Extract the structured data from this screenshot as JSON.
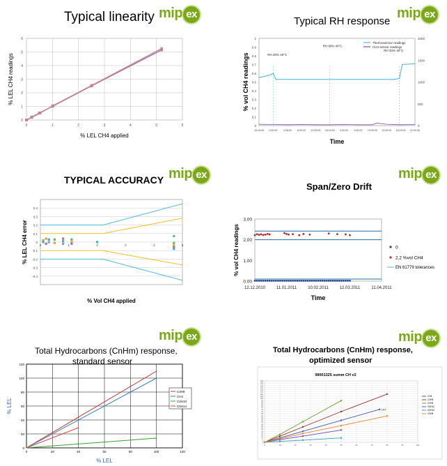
{
  "logo": {
    "text_a": "mip",
    "text_b": "ex"
  },
  "panels": [
    {
      "title": "Typical linearity"
    },
    {
      "title": "Typical RH response"
    },
    {
      "title": "TYPICAL ACCURACY"
    },
    {
      "title": "Span/Zero Drift"
    },
    {
      "title_line1": "Total Hydrocarbons (CnHm) response,",
      "title_line2": "standard sensor"
    },
    {
      "title_line1": "Total Hydrocarbons (CnHm) response,",
      "title_line2": "optimized sensor"
    }
  ],
  "chart_data": [
    {
      "type": "scatter",
      "xlabel": "% LEL CH4  applied",
      "ylabel": "% LEL CH4  readings",
      "xlim": [
        0,
        6
      ],
      "ylim": [
        0,
        6
      ],
      "xticks": [
        "0",
        "1",
        "2",
        "3",
        "4",
        "5",
        "6"
      ],
      "yticks": [
        "0",
        "1",
        "2",
        "3",
        "4",
        "5",
        "6"
      ],
      "grid": true,
      "series": [
        {
          "points": [
            [
              0,
              0
            ],
            [
              0.2,
              0.22
            ],
            [
              0.5,
              0.52
            ],
            [
              1.0,
              1.0
            ],
            [
              2.5,
              2.5
            ],
            [
              5.2,
              5.15
            ]
          ],
          "color": "#8a7fd0"
        },
        {
          "points": [
            [
              0,
              0
            ],
            [
              0.21,
              0.2
            ],
            [
              0.52,
              0.5
            ],
            [
              1.02,
              1.05
            ],
            [
              2.52,
              2.55
            ],
            [
              5.2,
              5.25
            ]
          ],
          "color": "#d08080"
        }
      ]
    },
    {
      "type": "line",
      "xlabel": "Time",
      "ylabel": "% vol CH4  readings",
      "ylim": [
        0,
        1
      ],
      "y2lim": [
        0,
        2000
      ],
      "yticks": [
        "0",
        "0.1",
        "0.2",
        "0.3",
        "0.4",
        "0.5",
        "0.6",
        "0.7",
        "0.8",
        "0.9",
        "1"
      ],
      "y2ticks": [
        "0",
        "500",
        "1000",
        "1500",
        "2000"
      ],
      "xticks": [
        "18:15:00",
        "0:00:00",
        "3:36:00",
        "8:00:00",
        "13:35:00",
        "18:15:00",
        "0:00:00",
        "5:40:00",
        "10:00:00",
        "13:30:00",
        "18:15:00",
        "22:00:00"
      ],
      "legend": [
        "Thermosensor  readings",
        "CH4  sensor  readings"
      ],
      "legend_position": "top-right",
      "annotations": [
        "RH 30% 40°C",
        "RH 90% 40°C",
        "RH 30% 40°C"
      ],
      "series": [
        {
          "name": "Thermosensor  readings",
          "color": "#4fb8e0",
          "x": [
            0,
            0.8,
            1.0,
            1.2,
            2.0,
            4.0,
            6.0,
            8.0,
            8.3,
            9.5,
            9.9,
            10.1,
            11.0
          ],
          "y": [
            0.55,
            0.58,
            0.6,
            0.53,
            0.53,
            0.53,
            0.53,
            0.53,
            0.53,
            0.53,
            0.54,
            0.7,
            0.71
          ]
        },
        {
          "name": "CH4  sensor  readings",
          "color": "#7a4fb0",
          "x": [
            0,
            1,
            2,
            3,
            4,
            5,
            6,
            7,
            8,
            8.3,
            9,
            10,
            11
          ],
          "y": [
            0.015,
            0.012,
            0.01,
            0.012,
            0.01,
            0.01,
            0.012,
            0.01,
            0.01,
            0.03,
            0.015,
            0.01,
            0.012
          ]
        }
      ]
    },
    {
      "type": "scatter",
      "xlabel": "% Vol CH4 applied",
      "ylabel": "% LEL CH4  error",
      "xlim": [
        0,
        5
      ],
      "ylim": [
        -0.5,
        0.5
      ],
      "xticks": [
        "0",
        "1",
        "2",
        "3",
        "4",
        "5"
      ],
      "yticks": [
        "0.4",
        "0.3",
        "0.2",
        "0.1",
        "0",
        "-0.1",
        "-0.2",
        "-0.3",
        "-0.4"
      ],
      "limits": [
        {
          "color": "#4fb8e0",
          "x": [
            0,
            2.2,
            5
          ],
          "y": [
            0.2,
            0.2,
            0.45
          ]
        },
        {
          "color": "#4fb8e0",
          "x": [
            0,
            2.2,
            5
          ],
          "y": [
            -0.2,
            -0.2,
            -0.45
          ]
        },
        {
          "color": "#f0c020",
          "x": [
            0,
            2.2,
            5
          ],
          "y": [
            0.1,
            0.1,
            0.28
          ]
        },
        {
          "color": "#f0c020",
          "x": [
            0,
            2.2,
            5
          ],
          "y": [
            -0.1,
            -0.1,
            -0.27
          ]
        }
      ],
      "points": [
        [
          0.1,
          0.02
        ],
        [
          0.1,
          0
        ],
        [
          0.2,
          0.04
        ],
        [
          0.2,
          -0.02
        ],
        [
          0.3,
          0.03
        ],
        [
          0.3,
          0
        ],
        [
          0.5,
          0.03
        ],
        [
          0.5,
          -0.01
        ],
        [
          0.8,
          0.04
        ],
        [
          0.8,
          0.01
        ],
        [
          0.8,
          -0.02
        ],
        [
          1.1,
          0.03
        ],
        [
          1.1,
          0
        ],
        [
          1.1,
          -0.02
        ],
        [
          2.0,
          0
        ],
        [
          4.7,
          0.07
        ],
        [
          4.7,
          -0.01
        ],
        [
          4.7,
          -0.04
        ],
        [
          4.7,
          -0.06
        ],
        [
          4.7,
          -0.08
        ]
      ]
    },
    {
      "type": "scatter",
      "xlabel": "Time",
      "ylabel": "% vol CH4  readings",
      "ylim": [
        0,
        3
      ],
      "yticks": [
        "0,00",
        "1,00",
        "2,00",
        "3,00"
      ],
      "xticks": [
        "12.12.2010",
        "11.01.2011",
        "10.02.2011",
        "12.03.2011",
        "11.04.2011"
      ],
      "legend": [
        "0",
        "2,2 %vol CH4",
        "EN 61779  tolerances"
      ],
      "legend_position": "right",
      "tolerances": [
        0.1,
        2.0,
        2.42
      ],
      "series": [
        {
          "name": "0",
          "color": "#1f3f8f",
          "x": [
            0,
            2,
            4,
            6,
            8,
            10,
            12,
            14,
            16,
            18,
            20,
            22,
            24,
            26,
            28,
            30,
            32,
            34,
            36,
            38,
            40,
            42,
            44,
            46,
            48,
            50,
            52,
            54,
            56,
            58,
            60,
            62,
            64,
            66,
            68,
            70,
            72,
            74,
            76,
            78,
            80,
            82,
            84,
            86,
            88,
            90
          ],
          "y": [
            0.02,
            0.02,
            0.02,
            0.02,
            0.02,
            0.02,
            0.02,
            0.02,
            0.02,
            0.02,
            0.02,
            0.02,
            0.02,
            0.02,
            0.02,
            0.02,
            0.02,
            0.02,
            0.02,
            0.02,
            0.02,
            0.02,
            0.02,
            0.02,
            0.02,
            0.02,
            0.02,
            0.02,
            0.02,
            0.02,
            0.02,
            0.02,
            0.02,
            0.02,
            0.02,
            0.02,
            0.02,
            0.02,
            0.02,
            0.02,
            0.02,
            0.02,
            0.02,
            0.02,
            0.02,
            0.02
          ]
        },
        {
          "name": "2,2 %vol CH4",
          "color": "#c02020",
          "x": [
            0,
            2,
            4,
            6,
            8,
            10,
            12,
            14,
            28,
            30,
            32,
            36,
            42,
            46,
            52,
            70,
            78,
            86,
            90
          ],
          "y": [
            2.22,
            2.27,
            2.24,
            2.26,
            2.23,
            2.25,
            2.28,
            2.26,
            2.32,
            2.28,
            2.25,
            2.27,
            2.22,
            2.28,
            2.25,
            2.3,
            2.27,
            2.26,
            2.22
          ]
        }
      ]
    },
    {
      "type": "line",
      "xlabel": "% LEL",
      "ylabel": "% LEL",
      "xlim": [
        0,
        120
      ],
      "ylim": [
        0,
        120
      ],
      "xticks": [
        "0",
        "20",
        "40",
        "60",
        "80",
        "100",
        "120"
      ],
      "yticks": [
        "0",
        "20",
        "40",
        "60",
        "80",
        "100",
        "120"
      ],
      "legend": [
        "C3H8",
        "CH4",
        "C4H10",
        "C6H14"
      ],
      "legend_position": "right",
      "series": [
        {
          "name": "C3H8",
          "color": "#c03030",
          "x": [
            0,
            100
          ],
          "y": [
            0,
            110
          ]
        },
        {
          "name": "CH4",
          "color": "#3a7ac0",
          "x": [
            0,
            100
          ],
          "y": [
            0,
            100
          ]
        },
        {
          "name": "C4H10",
          "color": "#30a030",
          "x": [
            0,
            100
          ],
          "y": [
            0,
            14
          ]
        },
        {
          "name": "C6H14",
          "color": "#e04040",
          "x": [
            0,
            40
          ],
          "y": [
            0,
            29
          ]
        }
      ]
    },
    {
      "type": "line",
      "title": "08001325  summ CH v2",
      "xlim": [
        0,
        100
      ],
      "ylim": [
        0,
        140
      ],
      "xticks": [
        "0",
        "10",
        "20",
        "30",
        "40",
        "50",
        "60",
        "70",
        "80",
        "90",
        "100"
      ],
      "yticks": [
        "0",
        "5",
        "10",
        "15",
        "20",
        "25",
        "30",
        "35",
        "40",
        "45",
        "50",
        "55",
        "60",
        "65",
        "70",
        "75",
        "80",
        "85",
        "90",
        "95",
        "100",
        "105",
        "110",
        "115",
        "120",
        "125",
        "130",
        "135",
        "140"
      ],
      "legend": [
        "CH4",
        "C3H8",
        "C2H6",
        "C6H12",
        "C6H14",
        "C3H8"
      ],
      "legend_position": "right",
      "annotations": [
        "CH4"
      ],
      "series": [
        {
          "name": "CH4",
          "color": "#3a5ab0",
          "x": [
            0,
            10,
            25,
            50,
            75
          ],
          "y": [
            0,
            10,
            25,
            50,
            75
          ]
        },
        {
          "name": "C3H8",
          "color": "#a03030",
          "x": [
            0,
            10,
            25,
            50,
            80
          ],
          "y": [
            0,
            14,
            35,
            70,
            110
          ]
        },
        {
          "name": "C2H6",
          "color": "#70a030",
          "x": [
            0,
            10,
            25,
            50
          ],
          "y": [
            0,
            18,
            47,
            95
          ]
        },
        {
          "name": "C6H12",
          "color": "#6a4ab0",
          "x": [
            0,
            10,
            25,
            50
          ],
          "y": [
            0,
            6,
            14,
            28
          ]
        },
        {
          "name": "C6H14",
          "color": "#30a0c0",
          "x": [
            0,
            10,
            25,
            50
          ],
          "y": [
            0,
            2,
            5,
            10
          ]
        },
        {
          "name": "C3H8",
          "color": "#f08030",
          "x": [
            0,
            10,
            25,
            50,
            80
          ],
          "y": [
            0,
            8,
            20,
            38,
            60
          ]
        }
      ]
    }
  ]
}
